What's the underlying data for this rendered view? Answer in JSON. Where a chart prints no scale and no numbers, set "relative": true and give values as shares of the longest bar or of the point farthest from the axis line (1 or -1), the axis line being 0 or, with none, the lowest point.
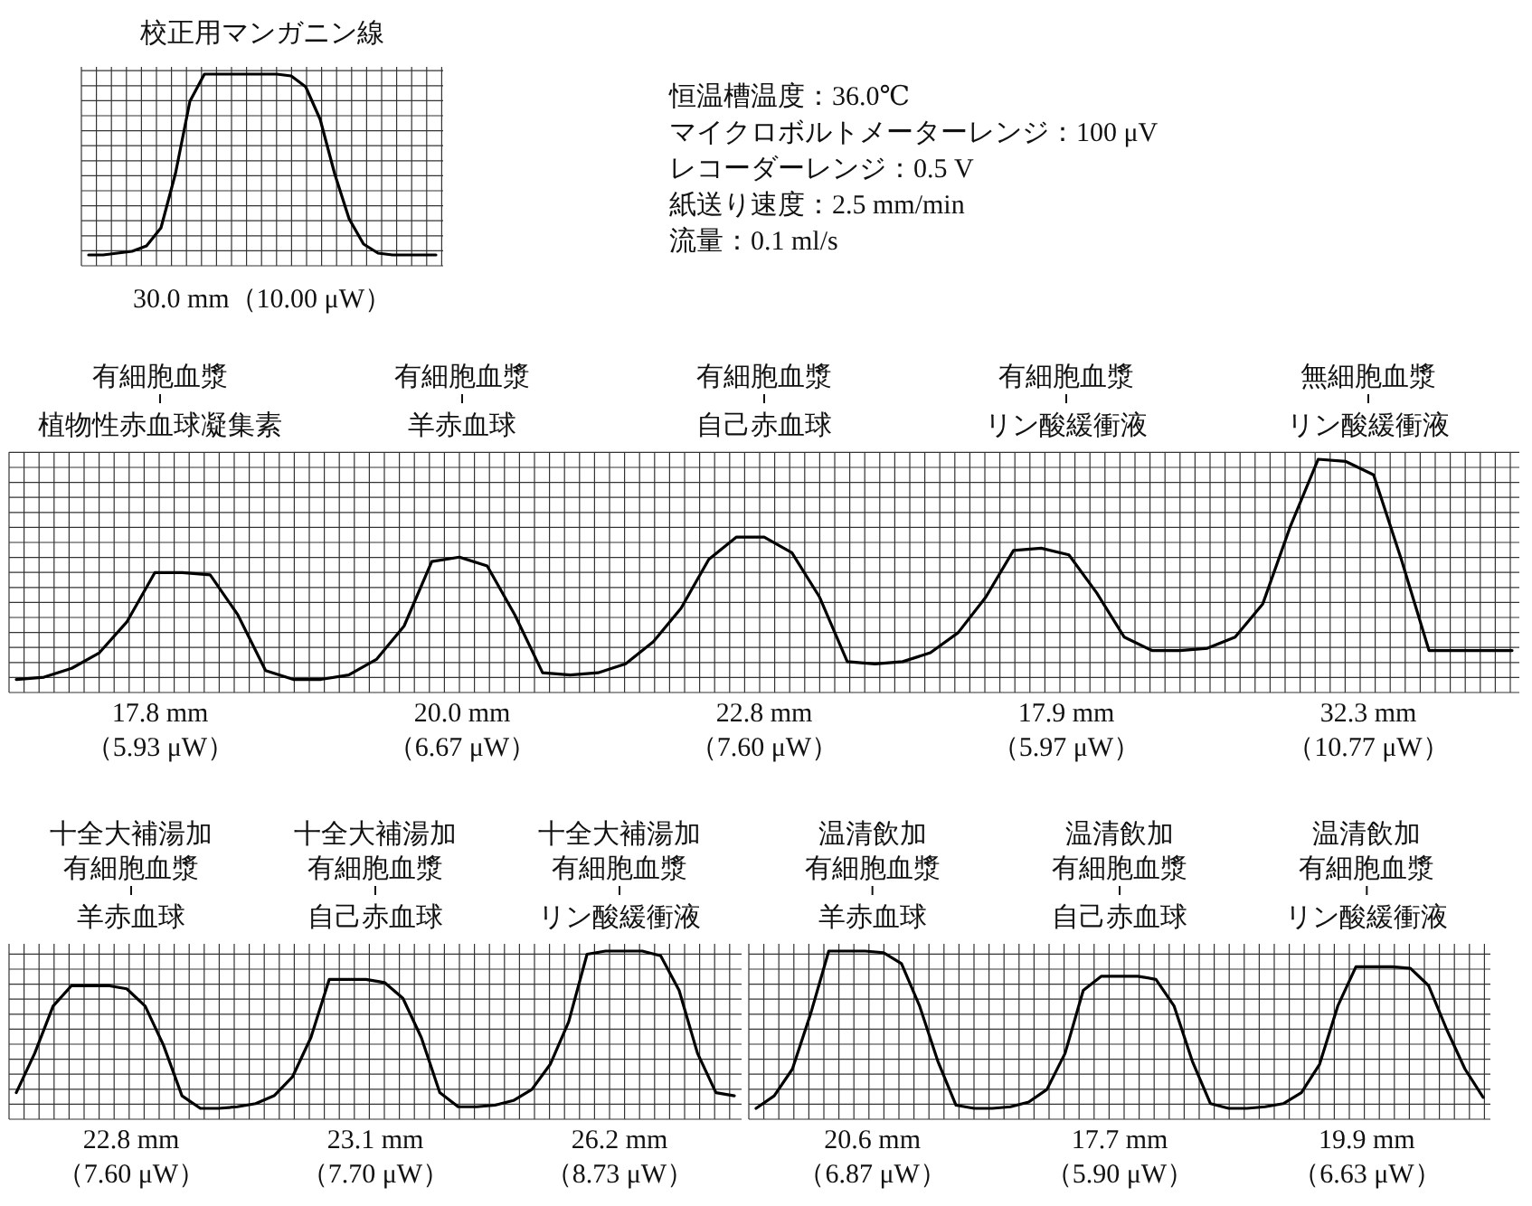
{
  "chart_data": [
    {
      "type": "line",
      "relative": true,
      "grid": true,
      "title": "校正用マンガニン線",
      "categories": [
        null,
        null,
        null,
        null,
        null,
        null,
        null,
        null,
        null,
        null,
        null,
        null,
        null,
        null,
        null,
        null,
        null,
        null,
        null,
        null,
        null,
        null,
        null,
        null,
        null
      ],
      "series": [
        {
          "color": "#000000",
          "values": [
            0,
            0,
            0.01,
            0.02,
            0.05,
            0.15,
            0.45,
            0.85,
            1,
            1,
            1,
            1,
            1,
            1,
            0.99,
            0.93,
            0.75,
            0.45,
            0.2,
            0.06,
            0.01,
            0,
            0,
            0,
            0
          ]
        }
      ],
      "annotations": [
        "30.0 mm（10.00 μW）"
      ]
    },
    {
      "type": "other",
      "annotations": [
        "恒温槽温度：36.0℃",
        "マイクロボルトメーターレンジ：100 μV",
        "レコーダーレンジ：0.5 V",
        "紙送り速度：2.5 mm/min",
        "流量：0.1 ml/s"
      ]
    },
    {
      "type": "line",
      "relative": true,
      "grid": true,
      "categories": [
        null,
        null,
        null,
        null,
        null,
        null,
        null,
        null,
        null,
        null,
        null,
        null,
        null,
        null,
        null,
        null,
        null,
        null,
        null,
        null,
        null,
        null,
        null,
        null,
        null,
        null,
        null,
        null,
        null,
        null,
        null,
        null,
        null,
        null,
        null,
        null,
        null,
        null,
        null,
        null,
        null,
        null,
        null,
        null,
        null,
        null,
        null,
        null,
        null,
        null,
        null,
        null,
        null,
        null,
        null
      ],
      "series": [
        {
          "color": "#000000",
          "values": [
            0.01,
            0.02,
            0.06,
            0.13,
            0.27,
            0.49,
            0.49,
            0.48,
            0.3,
            0.05,
            0.01,
            0.01,
            0.03,
            0.1,
            0.25,
            0.54,
            0.56,
            0.52,
            0.3,
            0.04,
            0.03,
            0.04,
            0.08,
            0.18,
            0.33,
            0.55,
            0.65,
            0.65,
            0.58,
            0.38,
            0.09,
            0.08,
            0.09,
            0.13,
            0.22,
            0.38,
            0.59,
            0.6,
            0.57,
            0.4,
            0.2,
            0.14,
            0.14,
            0.15,
            0.2,
            0.35,
            0.7,
            1,
            0.99,
            0.93,
            0.55,
            0.14,
            0.14,
            0.14,
            0.14
          ]
        }
      ],
      "annotations": [
        "有細胞血漿",
        "植物性赤血球凝集素",
        "17.8 mm\n（5.93 μW）",
        "有細胞血漿",
        "羊赤血球",
        "20.0 mm\n（6.67 μW）",
        "有細胞血漿",
        "自己赤血球",
        "22.8 mm\n（7.60 μW）",
        "有細胞血漿",
        "リン酸緩衝液",
        "17.9 mm\n（5.97 μW）",
        "無細胞血漿",
        "リン酸緩衝液",
        "32.3 mm\n（10.77 μW）"
      ]
    },
    {
      "type": "line",
      "relative": true,
      "grid": true,
      "categories": [
        null,
        null,
        null,
        null,
        null,
        null,
        null,
        null,
        null,
        null,
        null,
        null,
        null,
        null,
        null,
        null,
        null,
        null,
        null,
        null,
        null,
        null,
        null,
        null,
        null,
        null,
        null,
        null,
        null,
        null,
        null,
        null,
        null,
        null,
        null,
        null,
        null,
        null,
        null,
        null
      ],
      "series": [
        {
          "color": "#000000",
          "values": [
            0.1,
            0.35,
            0.65,
            0.78,
            0.78,
            0.78,
            0.76,
            0.65,
            0.4,
            0.08,
            0,
            0,
            0.01,
            0.03,
            0.08,
            0.2,
            0.45,
            0.82,
            0.82,
            0.82,
            0.8,
            0.7,
            0.45,
            0.1,
            0.01,
            0.01,
            0.02,
            0.05,
            0.12,
            0.28,
            0.55,
            0.98,
            1,
            1,
            1,
            0.97,
            0.75,
            0.35,
            0.1,
            0.08
          ]
        }
      ],
      "annotations": [
        "十全大補湯加",
        "有細胞血漿",
        "羊赤血球",
        "22.8 mm\n（7.60 μW）",
        "十全大補湯加",
        "有細胞血漿",
        "自己赤血球",
        "23.1 mm\n（7.70 μW）",
        "十全大補湯加",
        "有細胞血漿",
        "リン酸緩衝液",
        "26.2 mm\n（8.73 μW）"
      ]
    },
    {
      "type": "line",
      "relative": true,
      "grid": true,
      "categories": [
        null,
        null,
        null,
        null,
        null,
        null,
        null,
        null,
        null,
        null,
        null,
        null,
        null,
        null,
        null,
        null,
        null,
        null,
        null,
        null,
        null,
        null,
        null,
        null,
        null,
        null,
        null,
        null,
        null,
        null,
        null,
        null,
        null,
        null,
        null,
        null,
        null,
        null,
        null,
        null,
        null
      ],
      "series": [
        {
          "color": "#000000",
          "values": [
            0,
            0.08,
            0.25,
            0.6,
            1,
            1,
            1,
            0.99,
            0.92,
            0.65,
            0.3,
            0.02,
            0,
            0,
            0.01,
            0.04,
            0.12,
            0.35,
            0.75,
            0.84,
            0.84,
            0.84,
            0.82,
            0.65,
            0.3,
            0.03,
            0,
            0,
            0.01,
            0.03,
            0.1,
            0.28,
            0.65,
            0.9,
            0.9,
            0.9,
            0.89,
            0.78,
            0.5,
            0.25,
            0.07
          ]
        }
      ],
      "annotations": [
        "温清飲加",
        "有細胞血漿",
        "羊赤血球",
        "20.6 mm\n（6.87 μW）",
        "温清飲加",
        "有細胞血漿",
        "自己赤血球",
        "17.7 mm\n（5.90 μW）",
        "温清飲加",
        "有細胞血漿",
        "リン酸緩衝液",
        "19.9 mm\n（6.63 μW）"
      ]
    }
  ]
}
